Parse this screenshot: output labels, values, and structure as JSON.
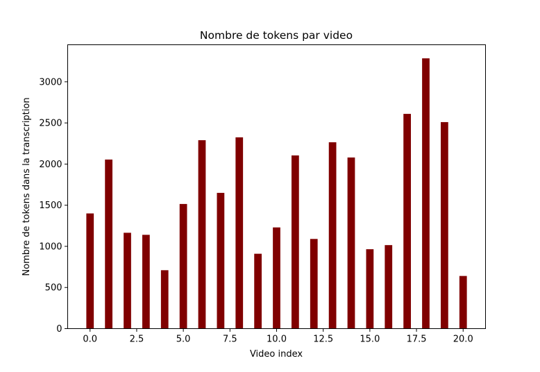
{
  "chart_data": {
    "type": "bar",
    "title": "Nombre de tokens par video",
    "xlabel": "Video index",
    "ylabel": "Nombre de tokens dans la transcription",
    "x": [
      0,
      1,
      2,
      3,
      4,
      5,
      6,
      7,
      8,
      9,
      10,
      11,
      12,
      13,
      14,
      15,
      16,
      17,
      18,
      19,
      20
    ],
    "values": [
      1400,
      2055,
      1165,
      1140,
      710,
      1515,
      2290,
      1650,
      2325,
      910,
      1230,
      2105,
      1090,
      2265,
      2080,
      965,
      1015,
      2610,
      3285,
      2510,
      640
    ],
    "xlim": [
      -1.2,
      21.2
    ],
    "ylim": [
      0,
      3450
    ],
    "xticks": [
      0.0,
      2.5,
      5.0,
      7.5,
      10.0,
      12.5,
      15.0,
      17.5,
      20.0
    ],
    "xtick_labels": [
      "0.0",
      "2.5",
      "5.0",
      "7.5",
      "10.0",
      "12.5",
      "15.0",
      "17.5",
      "20.0"
    ],
    "yticks": [
      0,
      500,
      1000,
      1500,
      2000,
      2500,
      3000
    ],
    "ytick_labels": [
      "0",
      "500",
      "1000",
      "1500",
      "2000",
      "2500",
      "3000"
    ],
    "bar_color": "#800000",
    "grid": false,
    "legend": "none"
  }
}
